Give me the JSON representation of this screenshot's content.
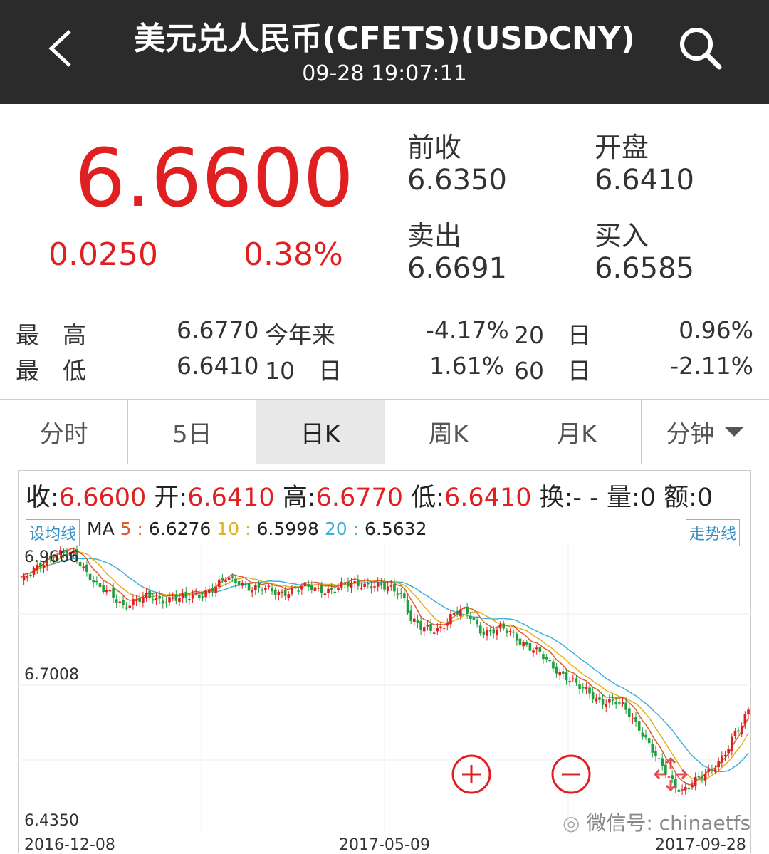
{
  "header": {
    "title": "美元兑人民币(CFETS)(USDCNY)",
    "datetime": "09-28 19:07:11"
  },
  "quote": {
    "price": "6.6600",
    "change": "0.0250",
    "change_pct": "0.38%",
    "prev_close_label": "前收",
    "prev_close": "6.6350",
    "open_label": "开盘",
    "open": "6.6410",
    "ask_label": "卖出",
    "ask": "6.6691",
    "bid_label": "买入",
    "bid": "6.6585"
  },
  "stats": {
    "high_label": "最　高",
    "high": "6.6770",
    "low_label": "最　低",
    "low": "6.6410",
    "ytd_label": "今年来",
    "ytd": "-4.17%",
    "d10_label": "10　日",
    "d10": "1.61%",
    "d20_label": "20　日",
    "d20": "0.96%",
    "d60_label": "60　日",
    "d60": "-2.11%"
  },
  "tabs": [
    "分时",
    "5日",
    "日K",
    "周K",
    "月K",
    "分钟"
  ],
  "ohlc": {
    "close_label": "收:",
    "close": "6.6600",
    "open_label": "开:",
    "open": "6.6410",
    "high_label": "高:",
    "high": "6.6770",
    "low_label": "低:",
    "low": "6.6410",
    "turnover_label": "换:- -",
    "volume_label": "量:0",
    "amount_label": "额:0"
  },
  "ma": {
    "button": "设均线",
    "label": "MA",
    "ma5_key": "5",
    "ma5": "6.6276",
    "ma10_key": "10",
    "ma10": "6.5998",
    "ma20_key": "20",
    "ma20": "6.5632",
    "trend_button": "走势线"
  },
  "colors": {
    "up": "#e02020",
    "down": "#1f9e3a",
    "ma5": "#e05a2b",
    "ma10": "#e0b020",
    "ma20": "#3fb0d8"
  },
  "chart_data": {
    "type": "candlestick",
    "y_ticks": [
      "6.9666",
      "6.7008",
      "6.4350"
    ],
    "x_ticks": [
      "2016-12-08",
      "2017-05-09",
      "2017-09-28"
    ],
    "ylim": [
      6.435,
      6.9666
    ],
    "close_path": [
      [
        0,
        6.9
      ],
      [
        4,
        6.92
      ],
      [
        8,
        6.945
      ],
      [
        12,
        6.955
      ],
      [
        16,
        6.95
      ],
      [
        20,
        6.92
      ],
      [
        24,
        6.89
      ],
      [
        28,
        6.87
      ],
      [
        31,
        6.855
      ],
      [
        34,
        6.865
      ],
      [
        38,
        6.87
      ],
      [
        42,
        6.865
      ],
      [
        46,
        6.872
      ],
      [
        50,
        6.868
      ],
      [
        54,
        6.875
      ],
      [
        58,
        6.89
      ],
      [
        62,
        6.905
      ],
      [
        66,
        6.9
      ],
      [
        70,
        6.89
      ],
      [
        74,
        6.885
      ],
      [
        78,
        6.88
      ],
      [
        82,
        6.885
      ],
      [
        86,
        6.89
      ],
      [
        90,
        6.887
      ],
      [
        94,
        6.885
      ],
      [
        98,
        6.893
      ],
      [
        102,
        6.898
      ],
      [
        106,
        6.895
      ],
      [
        110,
        6.888
      ],
      [
        114,
        6.885
      ],
      [
        116,
        6.87
      ],
      [
        118,
        6.83
      ],
      [
        121,
        6.812
      ],
      [
        124,
        6.808
      ],
      [
        127,
        6.815
      ],
      [
        130,
        6.835
      ],
      [
        133,
        6.845
      ],
      [
        136,
        6.835
      ],
      [
        139,
        6.81
      ],
      [
        142,
        6.805
      ],
      [
        145,
        6.81
      ],
      [
        148,
        6.805
      ],
      [
        151,
        6.79
      ],
      [
        154,
        6.775
      ],
      [
        157,
        6.762
      ],
      [
        160,
        6.745
      ],
      [
        163,
        6.73
      ],
      [
        166,
        6.715
      ],
      [
        169,
        6.698
      ],
      [
        172,
        6.69
      ],
      [
        175,
        6.675
      ],
      [
        178,
        6.672
      ],
      [
        181,
        6.668
      ],
      [
        184,
        6.65
      ],
      [
        187,
        6.625
      ],
      [
        190,
        6.59
      ],
      [
        193,
        6.555
      ],
      [
        196,
        6.53
      ],
      [
        198,
        6.515
      ],
      [
        200,
        6.505
      ],
      [
        202,
        6.51
      ],
      [
        205,
        6.525
      ],
      [
        208,
        6.54
      ],
      [
        211,
        6.56
      ],
      [
        214,
        6.585
      ],
      [
        216,
        6.61
      ],
      [
        218,
        6.625
      ],
      [
        220,
        6.66
      ]
    ]
  },
  "watermark": "微信号: chinaetfs"
}
